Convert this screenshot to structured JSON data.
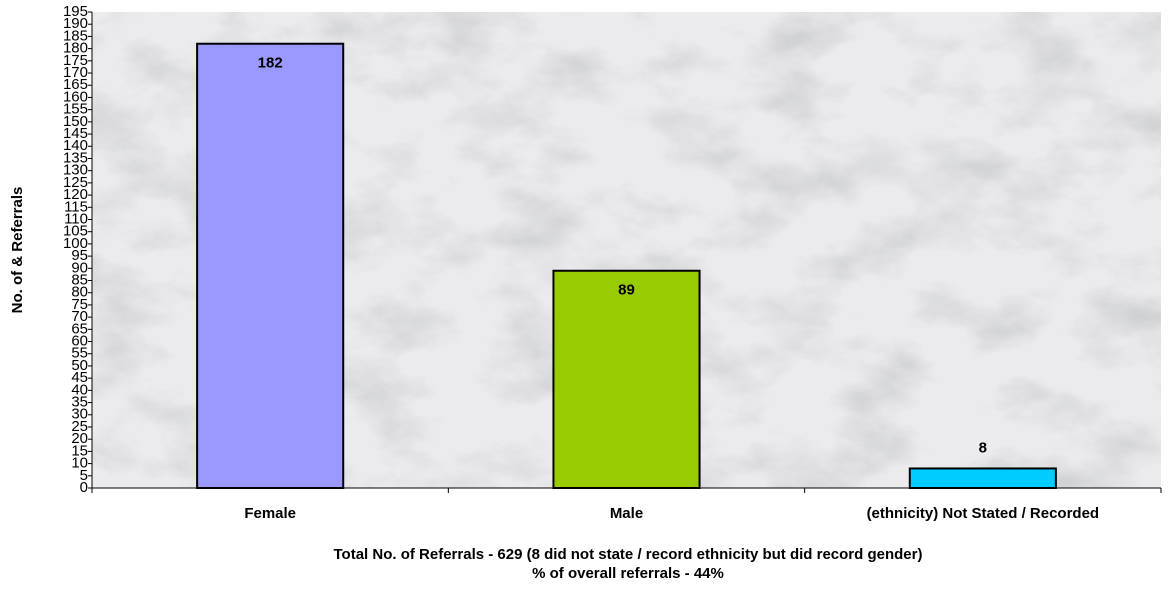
{
  "chart_data": {
    "type": "bar",
    "ylabel": "No. of & Referrals",
    "xlabel": [
      "Total No. of Referrals - 629 (8 did not state / record ethnicity but did record gender)",
      "% of overall referrals - 44%"
    ],
    "categories": [
      "Female",
      "Male",
      "(ethnicity) Not Stated / Recorded"
    ],
    "values": [
      182,
      89,
      8
    ],
    "colors": [
      "#9999ff",
      "#99cc00",
      "#00ccff"
    ],
    "ylim": [
      0,
      195
    ],
    "yticks": [
      0,
      5,
      10,
      15,
      20,
      25,
      30,
      35,
      40,
      45,
      50,
      55,
      60,
      65,
      70,
      75,
      80,
      85,
      90,
      95,
      100,
      105,
      110,
      115,
      120,
      125,
      130,
      135,
      140,
      145,
      150,
      155,
      160,
      165,
      170,
      175,
      180,
      185,
      190,
      195
    ],
    "grid": false
  }
}
